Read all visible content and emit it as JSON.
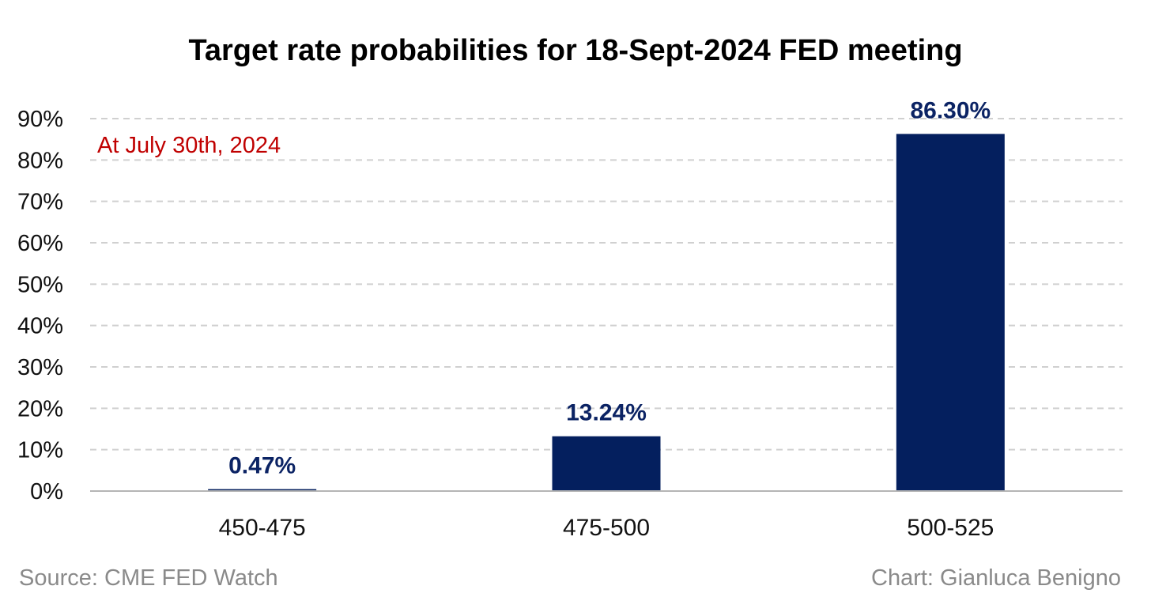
{
  "chart_data": {
    "type": "bar",
    "title": "Target rate probabilities for 18-Sept-2024 FED meeting",
    "annotation": "At July 30th, 2024",
    "categories": [
      "450-475",
      "475-500",
      "500-525"
    ],
    "values": [
      0.47,
      13.24,
      86.3
    ],
    "data_labels": [
      "0.47%",
      "13.24%",
      "86.30%"
    ],
    "ylim": [
      0,
      90
    ],
    "yticks": [
      0,
      10,
      20,
      30,
      40,
      50,
      60,
      70,
      80,
      90
    ],
    "ytick_labels": [
      "0%",
      "10%",
      "20%",
      "30%",
      "40%",
      "50%",
      "60%",
      "70%",
      "80%",
      "90%"
    ],
    "xlabel": "",
    "ylabel": "",
    "grid": "horizontal dashed",
    "legend": "none"
  },
  "footer": {
    "source": "Source: CME FED Watch",
    "credit": "Chart: Gianluca Benigno"
  },
  "colors": {
    "bar": "#041f5e",
    "data_label": "#0b2364",
    "annotation": "#c00000",
    "grid": "#d0d0d0",
    "axis": "#b5b5b5",
    "footer": "#8a8a8a"
  }
}
